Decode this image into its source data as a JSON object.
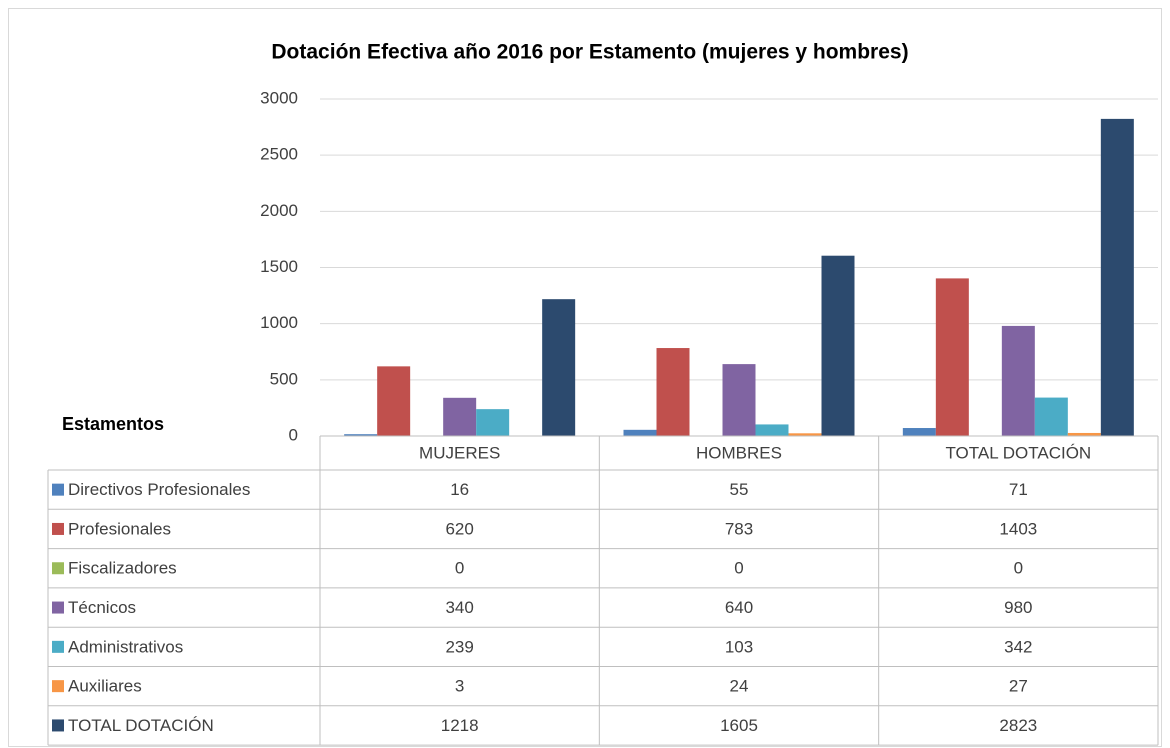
{
  "chart_data": {
    "type": "bar",
    "title": "Dotación Efectiva año 2016 por Estamento (mujeres y hombres)",
    "legend_title": "Estamentos",
    "categories": [
      "MUJERES",
      "HOMBRES",
      "TOTAL DOTACIÓN"
    ],
    "series": [
      {
        "name": "Directivos Profesionales",
        "color": "#4f81bd",
        "values": [
          16,
          55,
          71
        ]
      },
      {
        "name": "Profesionales",
        "color": "#c0504d",
        "values": [
          620,
          783,
          1403
        ]
      },
      {
        "name": "Fiscalizadores",
        "color": "#9bbb59",
        "values": [
          0,
          0,
          0
        ]
      },
      {
        "name": "Técnicos",
        "color": "#8064a2",
        "values": [
          340,
          640,
          980
        ]
      },
      {
        "name": "Administrativos",
        "color": "#4bacc6",
        "values": [
          239,
          103,
          342
        ]
      },
      {
        "name": "Auxiliares",
        "color": "#f79646",
        "values": [
          3,
          24,
          27
        ]
      },
      {
        "name": "TOTAL DOTACIÓN",
        "color": "#2c4a6e",
        "values": [
          1218,
          1605,
          2823
        ]
      }
    ],
    "ylim": [
      0,
      3000
    ],
    "yticks": [
      0,
      500,
      1000,
      1500,
      2000,
      2500,
      3000
    ],
    "grid": true
  }
}
